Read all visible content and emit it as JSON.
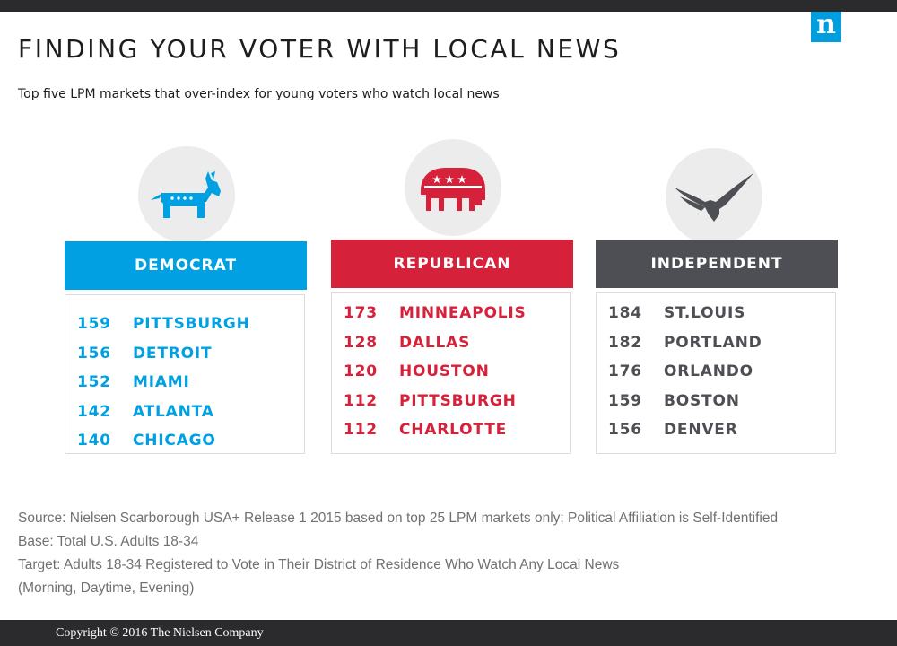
{
  "header": {
    "title": "FINDING YOUR VOTER WITH LOCAL NEWS",
    "subtitle": "Top five LPM markets that over-index for young voters who watch local news",
    "logo_letter": "n"
  },
  "chart_data": {
    "type": "table",
    "title": "FINDING YOUR VOTER WITH LOCAL NEWS",
    "subtitle": "Top five LPM markets that over-index for young voters who watch local news",
    "groups": [
      {
        "name": "DEMOCRAT",
        "icon": "donkey-icon",
        "color": "#00a0e3",
        "rows": [
          {
            "index": 159,
            "market": "PITTSBURGH"
          },
          {
            "index": 156,
            "market": "DETROIT"
          },
          {
            "index": 152,
            "market": "MIAMI"
          },
          {
            "index": 142,
            "market": "ATLANTA"
          },
          {
            "index": 140,
            "market": "CHICAGO"
          }
        ]
      },
      {
        "name": "REPUBLICAN",
        "icon": "elephant-icon",
        "color": "#d6213a",
        "rows": [
          {
            "index": 173,
            "market": "MINNEAPOLIS"
          },
          {
            "index": 128,
            "market": "DALLAS"
          },
          {
            "index": 120,
            "market": "HOUSTON"
          },
          {
            "index": 112,
            "market": "PITTSBURGH"
          },
          {
            "index": 112,
            "market": "CHARLOTTE"
          }
        ]
      },
      {
        "name": "INDEPENDENT",
        "icon": "eagle-icon",
        "color": "#4e4f54",
        "rows": [
          {
            "index": 184,
            "market": "ST.LOUIS"
          },
          {
            "index": 182,
            "market": "PORTLAND"
          },
          {
            "index": 176,
            "market": "ORLANDO"
          },
          {
            "index": 159,
            "market": "BOSTON"
          },
          {
            "index": 156,
            "market": "DENVER"
          }
        ]
      }
    ]
  },
  "notes": {
    "source": "Source: Nielsen Scarborough USA+ Release 1 2015 based on top 25 LPM markets only; Political Affiliation is Self-Identified",
    "base": "Base: Total U.S. Adults 18-34",
    "target": "Target: Adults 18-34 Registered to Vote in Their District of Residence Who Watch Any Local News",
    "target_detail": "(Morning, Daytime, Evening)"
  },
  "footer": {
    "copyright": "Copyright © 2016 The Nielsen Company"
  },
  "colors": {
    "dark_bar": "#2b2b2d",
    "logo_blue": "#009ede",
    "note_text": "#707172",
    "icon_circle": "#ececec"
  }
}
